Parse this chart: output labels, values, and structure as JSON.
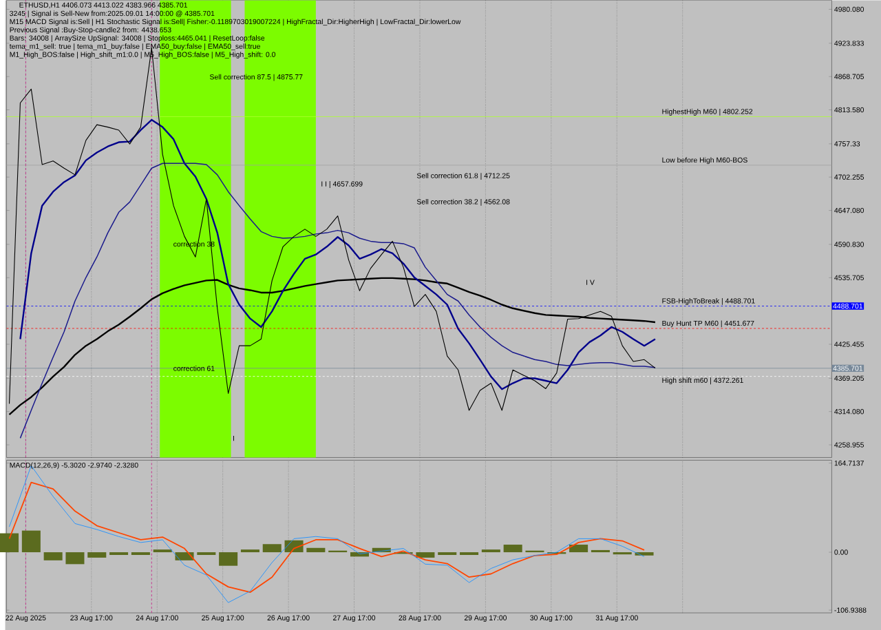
{
  "chart_data": [
    {
      "type": "line",
      "title": "ETHUSD,H1  4406.073 4413.022 4383.966 4385.701",
      "annotations": [
        "3245 | Signal is Sell-New from:2025.09.01 14:00:00 @ 4385.701",
        "M15 MACD Signal is:Sell | H1 Stochastic Signal is:Sell| Fisher:-0.1189703019007224 | HighFractal_Dir:HigherHigh | LowFractal_Dir:lowerLow",
        "Previous Signal :Buy-Stop-candle2 from: 4438.653",
        "Bars: 34008 | ArraySize UpSignal: 34008 | Stoploss:4465.041 | ResetLoop:false",
        "tema_m1_sell: true | tema_m1_buy:false | EMA50_buy:false | EMA50_sell:true",
        "M1_High_BOS:false | High_shift_m1:0.0 | M5_High_BOS:false | M5_High_shift: 0.0",
        "Sell correction 87.5 | 4875.77",
        "Sell correction 61.8 | 4712.25",
        "I I | 4657.699",
        "correction 38",
        "Sell correction 38.2 | 4562.08",
        "correction 61",
        "I",
        "I V",
        {
          "text": "HighestHigh  M60 | 4802.252",
          "x": "2025-09-01T09:00",
          "y": 4802.252
        },
        {
          "text": "Low before High  M60-BOS",
          "x": "2025-09-01T09:00",
          "y": 4722
        },
        {
          "text": "FSB-HighToBreak | 4488.701",
          "x": "2025-09-01T09:00",
          "y": 4488.701
        },
        {
          "text": "Buy Hunt TP M60 | 4451.677",
          "x": "2025-09-01T09:00",
          "y": 4451.677
        },
        {
          "text": "High shift m60 | 4372.261",
          "x": "2025-09-01T09:00",
          "y": 4372.261
        }
      ],
      "x": [
        "2025-08-22T11:00",
        "2025-08-22T15:00",
        "2025-08-22T19:00",
        "2025-08-22T23:00",
        "2025-08-23T03:00",
        "2025-08-23T07:00",
        "2025-08-23T11:00",
        "2025-08-23T15:00",
        "2025-08-23T19:00",
        "2025-08-23T23:00",
        "2025-08-24T03:00",
        "2025-08-24T07:00",
        "2025-08-24T11:00",
        "2025-08-24T15:00",
        "2025-08-24T19:00",
        "2025-08-24T23:00",
        "2025-08-25T03:00",
        "2025-08-25T07:00",
        "2025-08-25T11:00",
        "2025-08-25T15:00",
        "2025-08-25T19:00",
        "2025-08-25T23:00",
        "2025-08-26T03:00",
        "2025-08-26T07:00",
        "2025-08-26T11:00",
        "2025-08-26T15:00",
        "2025-08-26T19:00",
        "2025-08-26T23:00",
        "2025-08-27T03:00",
        "2025-08-27T07:00",
        "2025-08-27T11:00",
        "2025-08-27T15:00",
        "2025-08-27T19:00",
        "2025-08-27T23:00",
        "2025-08-28T03:00",
        "2025-08-28T07:00",
        "2025-08-28T11:00",
        "2025-08-28T15:00",
        "2025-08-28T19:00",
        "2025-08-28T23:00",
        "2025-08-29T03:00",
        "2025-08-29T07:00",
        "2025-08-29T11:00",
        "2025-08-29T15:00",
        "2025-08-29T19:00",
        "2025-08-29T23:00",
        "2025-08-30T03:00",
        "2025-08-30T07:00",
        "2025-08-30T11:00",
        "2025-08-30T15:00",
        "2025-08-30T19:00",
        "2025-08-30T23:00",
        "2025-08-31T03:00",
        "2025-08-31T07:00",
        "2025-08-31T11:00",
        "2025-08-31T15:00",
        "2025-08-31T19:00",
        "2025-08-31T23:00",
        "2025-09-01T03:00",
        "2025-09-01T07:00"
      ],
      "series": [
        {
          "color": "#000000",
          "values": [
            4309,
            4325,
            4338,
            4354,
            4372,
            4388,
            4408,
            4423,
            4434,
            4447,
            4458,
            4471,
            4485,
            4500,
            4510,
            4517,
            4523,
            4527,
            4531,
            4532,
            4524,
            4518,
            4515,
            4511,
            4511,
            4514,
            4518,
            4522,
            4525,
            4528,
            4531,
            4532,
            4533,
            4534,
            4535,
            4535,
            4534,
            4533,
            4531,
            4528,
            4526,
            4519,
            4512,
            4506,
            4499,
            4491,
            4485,
            4481,
            4477,
            4474,
            4473,
            4472,
            4471,
            4469,
            4468,
            4467,
            4466,
            4465,
            4464,
            4462
          ]
        },
        {
          "color": "#00008b",
          "values": [
            null,
            4434,
            4576,
            4655,
            4678,
            4694,
            4705,
            4730,
            4743,
            4753,
            4760,
            4761,
            4780,
            4797,
            4785,
            4765,
            4725,
            4703,
            4666,
            4610,
            4525,
            4491,
            4468,
            4454,
            4480,
            4514,
            4542,
            4567,
            4574,
            4587,
            4603,
            4589,
            4567,
            4574,
            4583,
            4576,
            4559,
            4536,
            4522,
            4508,
            4491,
            4451,
            4427,
            4400,
            4372,
            4351,
            4361,
            4369,
            4369,
            4365,
            4361,
            4383,
            4412,
            4429,
            4440,
            4454,
            4446,
            4434,
            4423,
            4434
          ]
        },
        {
          "color": "#1a1a8c",
          "values": [
            null,
            4270,
            4316,
            4361,
            4404,
            4446,
            4497,
            4536,
            4570,
            4610,
            4644,
            4661,
            4689,
            4717,
            4725,
            4725,
            4725,
            4725,
            4723,
            4706,
            4678,
            4655,
            4633,
            4612,
            4604,
            4601,
            4602,
            4604,
            4608,
            4610,
            4614,
            4610,
            4601,
            4596,
            4594,
            4594,
            4592,
            4585,
            4553,
            4531,
            4508,
            4497,
            4474,
            4454,
            4437,
            4423,
            4412,
            4406,
            4400,
            4397,
            4392,
            4390,
            4392,
            4394,
            4395,
            4395,
            4392,
            4389,
            4389,
            4387
          ]
        },
        {
          "color": "#000000",
          "values": [
            4327,
            4825,
            4848,
            4723,
            4729,
            4717,
            4706,
            4763,
            4789,
            4785,
            4780,
            4757,
            4785,
            4916,
            4740,
            4655,
            4604,
            4570,
            4666,
            4485,
            4344,
            4423,
            4423,
            4434,
            4531,
            4587,
            4604,
            4616,
            4604,
            4616,
            4638,
            4565,
            4514,
            4551,
            4574,
            4596,
            4553,
            4488,
            4508,
            4480,
            4406,
            4383,
            4316,
            4349,
            4361,
            4316,
            4383,
            4374,
            4365,
            4352,
            4378,
            4467,
            4468,
            4474,
            4480,
            4472,
            4423,
            4397,
            4400,
            4386
          ]
        }
      ],
      "xlim": [
        "2025-08-22T10:00",
        "2025-09-03T23:30"
      ],
      "ylim": [
        4238,
        4995
      ],
      "xticks": [
        {
          "value": "2025-08-22T17:00",
          "label": null
        },
        {
          "value": "2025-08-23T17:00",
          "label": null
        },
        {
          "value": "2025-08-24T17:00",
          "label": null
        },
        {
          "value": "2025-08-25T17:00",
          "label": null
        },
        {
          "value": "2025-08-26T17:00",
          "label": null
        },
        {
          "value": "2025-08-27T17:00",
          "label": null
        },
        {
          "value": "2025-08-28T17:00",
          "label": null
        },
        {
          "value": "2025-08-29T17:00",
          "label": null
        },
        {
          "value": "2025-08-30T17:00",
          "label": null
        },
        {
          "value": "2025-08-31T17:00",
          "label": null
        },
        {
          "value": "2025-09-01T17:00",
          "label": null
        }
      ],
      "yticks": [
        {
          "value": 4980.08,
          "label": "4980.080"
        },
        4923.833,
        4868.705,
        {
          "value": 4813.58,
          "label": "4813.580"
        },
        4757.33,
        4702.255,
        {
          "value": 4647.08,
          "label": "4647.080"
        },
        {
          "value": 4590.83,
          "label": "4590.830"
        },
        4535.705,
        4425.455,
        4369.205,
        {
          "value": 4314.08,
          "label": "4314.080"
        },
        4258.955
      ],
      "grid": "x",
      "tick_labels": "y",
      "ref_lines": [
        {
          "axis": "y",
          "value": 4802.252,
          "color": "#adff2f"
        },
        {
          "axis": "y",
          "value": 4722,
          "color": "#a0a0a0"
        },
        {
          "axis": "y",
          "value": 4488.701,
          "label": "4488.701",
          "color": "#0000ff",
          "line_style": "dashed"
        },
        {
          "axis": "y",
          "value": 4451.677,
          "color": "#ff0000",
          "line_style": "dashed"
        },
        {
          "axis": "y",
          "value": 4372.261,
          "color": "#ffffff",
          "line_style": "dashed"
        },
        {
          "axis": "y",
          "value": 4385.701,
          "label": "4385.701",
          "color": "#778899"
        },
        {
          "axis": "x",
          "value": "2025-08-22T17:00",
          "color": "#c71585",
          "line_style": "dashed"
        },
        {
          "axis": "x",
          "value": "2025-08-24T15:00",
          "color": "#c71585",
          "line_style": "dashed"
        }
      ],
      "bands": [
        {
          "axis": "x",
          "from": "2025-08-24T18:00",
          "to": "2025-08-25T20:00",
          "color": "#7cfc00"
        },
        {
          "axis": "x",
          "from": "2025-08-26T01:00",
          "to": "2025-08-27T03:00",
          "color": "#7cfc00"
        }
      ]
    },
    {
      "type": "bar",
      "title": "MACD(12,26,9) -5.3020 -2.9740 -2.3280",
      "x": [
        "2025-08-22T11:00",
        "2025-08-22T19:00",
        "2025-08-23T03:00",
        "2025-08-23T11:00",
        "2025-08-23T19:00",
        "2025-08-24T03:00",
        "2025-08-24T11:00",
        "2025-08-24T19:00",
        "2025-08-25T03:00",
        "2025-08-25T11:00",
        "2025-08-25T19:00",
        "2025-08-26T03:00",
        "2025-08-26T11:00",
        "2025-08-26T19:00",
        "2025-08-27T03:00",
        "2025-08-27T11:00",
        "2025-08-27T19:00",
        "2025-08-28T03:00",
        "2025-08-28T11:00",
        "2025-08-28T19:00",
        "2025-08-29T03:00",
        "2025-08-29T11:00",
        "2025-08-29T19:00",
        "2025-08-30T03:00",
        "2025-08-30T11:00",
        "2025-08-30T19:00",
        "2025-08-31T03:00",
        "2025-08-31T11:00",
        "2025-08-31T19:00",
        "2025-09-01T03:00"
      ],
      "series": [
        {
          "type": "bar",
          "color": "#5b6b1f",
          "values": [
            35,
            40,
            -15,
            -22,
            -10,
            -5,
            -5,
            5,
            -15,
            -5,
            -25,
            5,
            15,
            22,
            8,
            3,
            -8,
            8,
            -3,
            -10,
            -5,
            -5,
            5,
            14,
            3,
            -3,
            14,
            4,
            -4,
            -6
          ]
        },
        {
          "type": "line",
          "color": "#ff4500",
          "values": [
            25,
            129,
            117,
            76,
            49,
            36,
            23,
            28,
            7,
            -40,
            -64,
            -74,
            -46,
            7,
            23,
            23,
            7,
            -8,
            2,
            -14,
            -21,
            -46,
            -40,
            -21,
            -6,
            -4,
            18,
            25,
            21,
            4
          ]
        },
        {
          "type": "line",
          "color": "#1e90ff",
          "values": [
            47,
            160,
            103,
            53,
            42,
            29,
            18,
            23,
            -24,
            -42,
            -93,
            -72,
            -19,
            25,
            29,
            25,
            -3,
            2,
            7,
            -22,
            -24,
            -56,
            -30,
            -14,
            -6,
            0,
            25,
            25,
            11,
            -8
          ]
        }
      ],
      "xlim": [
        "2025-08-22T10:00",
        "2025-09-03T23:30"
      ],
      "ylim": [
        -112,
        170
      ],
      "xticks": [
        {
          "value": "2025-08-22T17:00",
          "label": "22 Aug 2025"
        },
        {
          "value": "2025-08-23T17:00",
          "label": "23 Aug 17:00"
        },
        {
          "value": "2025-08-24T17:00",
          "label": "24 Aug 17:00"
        },
        {
          "value": "2025-08-25T17:00",
          "label": "25 Aug 17:00"
        },
        {
          "value": "2025-08-26T17:00",
          "label": "26 Aug 17:00"
        },
        {
          "value": "2025-08-27T17:00",
          "label": "27 Aug 17:00"
        },
        {
          "value": "2025-08-28T17:00",
          "label": "28 Aug 17:00"
        },
        {
          "value": "2025-08-29T17:00",
          "label": "29 Aug 17:00"
        },
        {
          "value": "2025-08-30T17:00",
          "label": "30 Aug 17:00"
        },
        {
          "value": "2025-08-31T17:00",
          "label": "31 Aug 17:00"
        },
        {
          "value": "2025-09-01T17:00",
          "label": null
        }
      ],
      "yticks": [
        164.7137,
        {
          "value": 0,
          "label": "0.00"
        },
        -106.9388
      ],
      "grid": "x",
      "ref_lines": [
        {
          "axis": "x",
          "value": "2025-08-22T17:00",
          "color": "#c71585",
          "line_style": "dashed"
        },
        {
          "axis": "x",
          "value": "2025-08-24T15:00",
          "color": "#c71585",
          "line_style": "dashed"
        }
      ]
    }
  ]
}
